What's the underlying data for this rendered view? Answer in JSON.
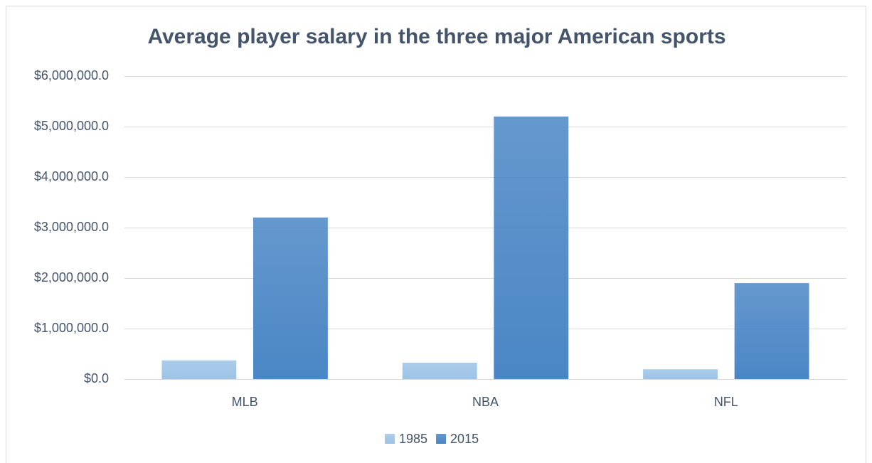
{
  "chart_data": {
    "type": "bar",
    "title": "Average player salary in the three major American sports",
    "categories": [
      "MLB",
      "NBA",
      "NFL"
    ],
    "series": [
      {
        "name": "1985",
        "color": "#9dc3e6",
        "values": [
          371000,
          325000,
          194000
        ]
      },
      {
        "name": "2015",
        "color": "#4a86c5",
        "values": [
          3200000,
          5200000,
          1900000
        ]
      }
    ],
    "ylim": [
      0,
      6000000
    ],
    "yticks": [
      {
        "value": 0,
        "label": "$0.0"
      },
      {
        "value": 1000000,
        "label": "$1,000,000.0"
      },
      {
        "value": 2000000,
        "label": "$2,000,000.0"
      },
      {
        "value": 3000000,
        "label": "$3,000,000.0"
      },
      {
        "value": 4000000,
        "label": "$4,000,000.0"
      },
      {
        "value": 5000000,
        "label": "$5,000,000.0"
      },
      {
        "value": 6000000,
        "label": "$6,000,000.0"
      }
    ],
    "grid": true,
    "legend": "bottom"
  }
}
